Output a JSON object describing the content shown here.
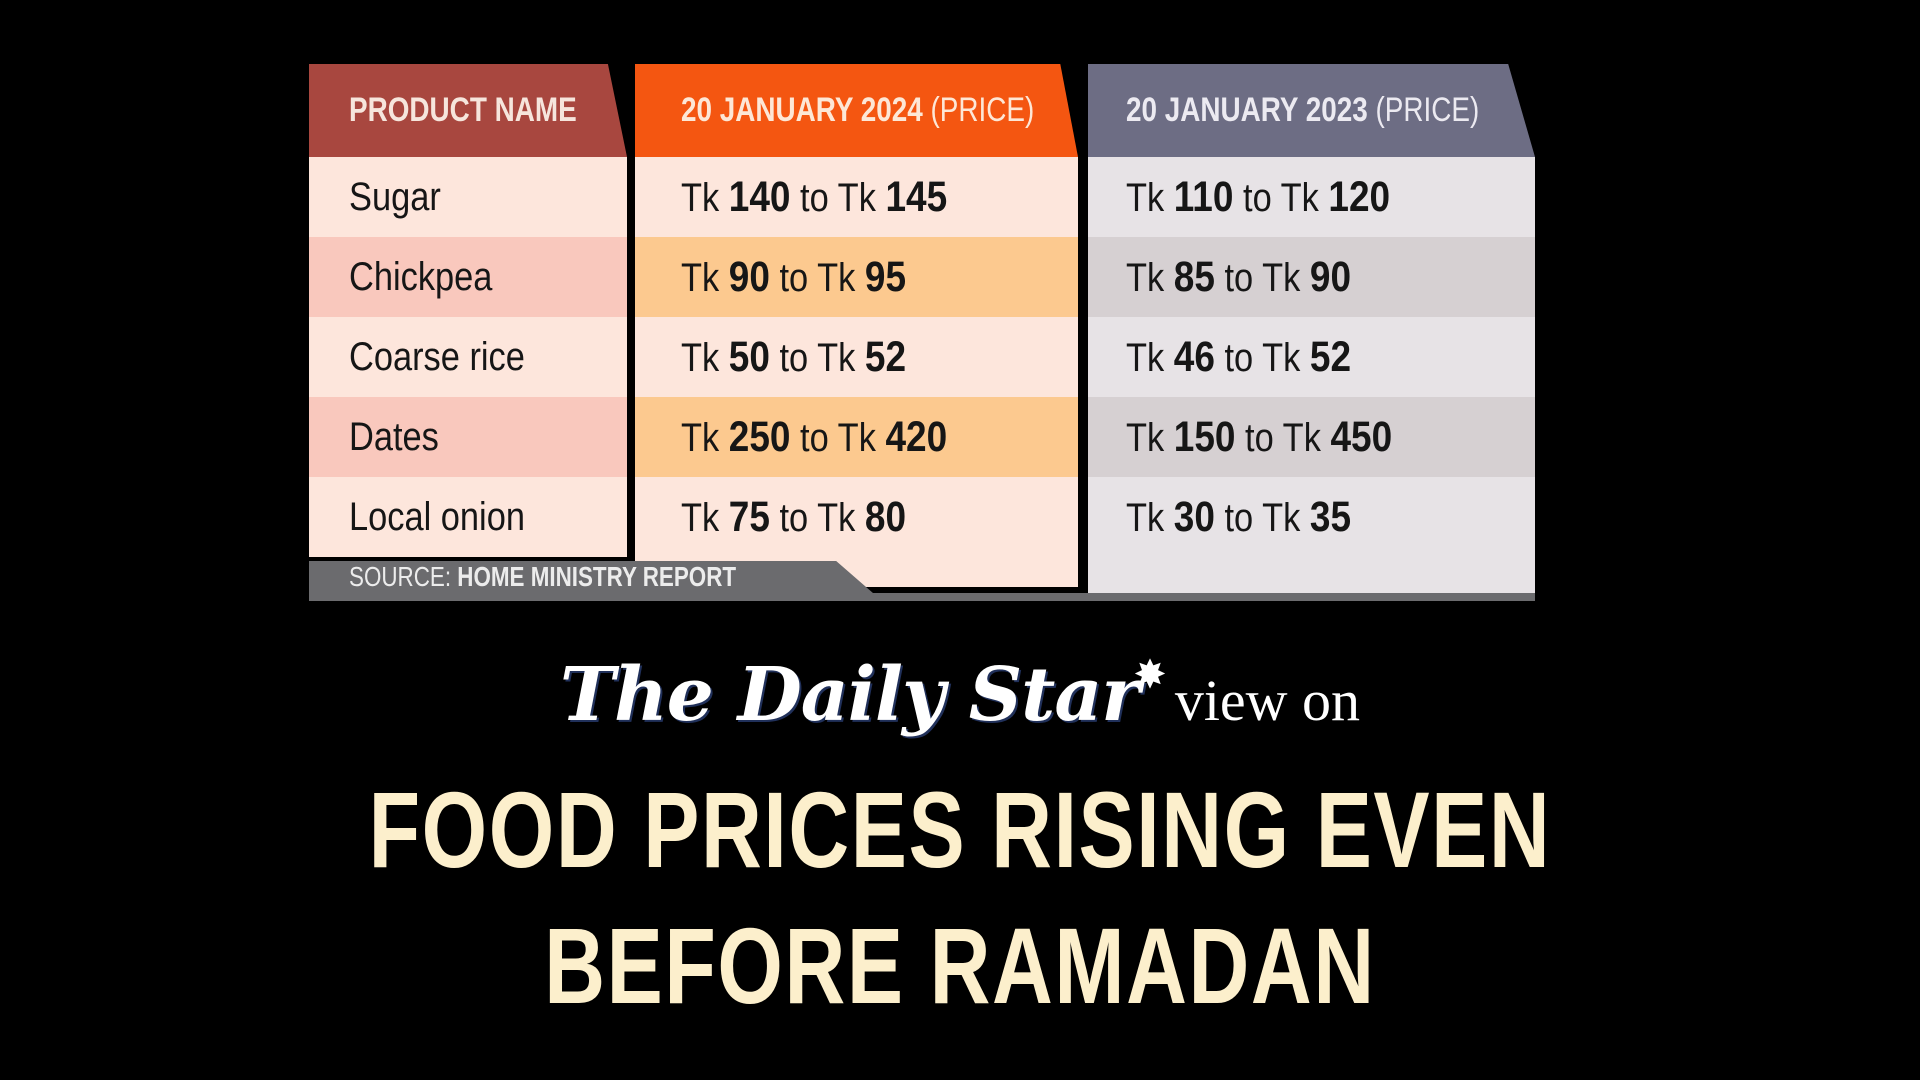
{
  "table": {
    "columns": {
      "product": {
        "label": "PRODUCT NAME"
      },
      "price_2024": {
        "label": "20 JANUARY 2024",
        "sub": "(PRICE)"
      },
      "price_2023": {
        "label": "20 JANUARY 2023",
        "sub": "(PRICE)"
      }
    },
    "rows": [
      {
        "product": "Sugar",
        "p2024_low": "140",
        "p2024_high": "145",
        "p2023_low": "110",
        "p2023_high": "120"
      },
      {
        "product": "Chickpea",
        "p2024_low": "90",
        "p2024_high": "95",
        "p2023_low": "85",
        "p2023_high": "90"
      },
      {
        "product": "Coarse rice",
        "p2024_low": "50",
        "p2024_high": "52",
        "p2023_low": "46",
        "p2023_high": "52"
      },
      {
        "product": "Dates",
        "p2024_low": "250",
        "p2024_high": "420",
        "p2023_low": "150",
        "p2023_high": "450"
      },
      {
        "product": "Local onion",
        "p2024_low": "75",
        "p2024_high": "80",
        "p2023_low": "30",
        "p2023_high": "35"
      }
    ],
    "currency": "Tk",
    "range_word": "to",
    "source_label": "SOURCE:",
    "source_value": "HOME MINISTRY REPORT"
  },
  "masthead": {
    "logo": "The Daily Star",
    "tail": "view on"
  },
  "headline": {
    "line1": "FOOD PRICES RISING EVEN",
    "line2": "BEFORE RAMADAN"
  },
  "colors": {
    "product_header": "#a8473f",
    "header_2024": "#f45611",
    "header_2023": "#6d6d84",
    "headline_text": "#fcefcc",
    "background": "#000000"
  }
}
